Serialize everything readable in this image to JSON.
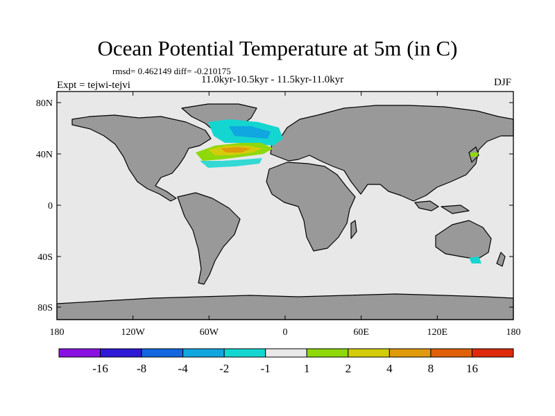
{
  "title": "Ocean Potential Temperature at 5m (in C)",
  "stats": "rmsd= 0.462149 diff= -0.210175",
  "subtitle": "11.0kyr-10.5kyr - 11.5kyr-11.0kyr",
  "experiment": "Expt = tejwi-tejvi",
  "season": "DJF",
  "lat_ticks": [
    "80N",
    "40N",
    "0",
    "40S",
    "80S"
  ],
  "lon_ticks": [
    "180",
    "120W",
    "60W",
    "0",
    "60E",
    "120E",
    "180"
  ],
  "colorbar": {
    "labels": [
      "-16",
      "-8",
      "-4",
      "-2",
      "-1",
      "1",
      "2",
      "4",
      "8",
      "16"
    ],
    "colors": [
      "#8a12e0",
      "#2d19d6",
      "#1466e0",
      "#10a6e0",
      "#14d6d0",
      "#e8e8e8",
      "#8ed80c",
      "#d4cc0a",
      "#e09a0c",
      "#e0600a",
      "#dc2a0a"
    ]
  },
  "colors": {
    "ocean": "#e8e8e8",
    "land": "#999999",
    "coast": "#000000"
  }
}
